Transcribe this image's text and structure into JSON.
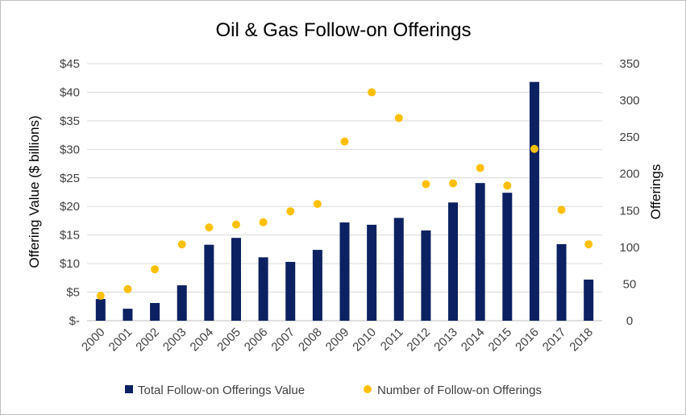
{
  "chart_data": {
    "type": "bar",
    "title": "Oil & Gas Follow-on Offerings",
    "categories": [
      "2000",
      "2001",
      "2002",
      "2003",
      "2004",
      "2005",
      "2006",
      "2007",
      "2008",
      "2009",
      "2010",
      "2011",
      "2012",
      "2013",
      "2014",
      "2015",
      "2016",
      "2017",
      "2018"
    ],
    "series": [
      {
        "name": "Total Follow-on Offerings Value",
        "type": "bar",
        "axis": "left",
        "color": "#0b2161",
        "values": [
          3.8,
          2.1,
          3.1,
          6.2,
          13.3,
          14.5,
          11.1,
          10.3,
          12.4,
          17.2,
          16.8,
          18.0,
          15.8,
          20.7,
          24.1,
          22.4,
          41.8,
          13.4,
          7.2
        ]
      },
      {
        "name": "Number of Follow-on Offerings",
        "type": "scatter",
        "axis": "right",
        "color": "#ffc000",
        "values": [
          34,
          43,
          70,
          104,
          127,
          131,
          134,
          149,
          159,
          244,
          311,
          276,
          186,
          187,
          208,
          184,
          234,
          151,
          104
        ]
      }
    ],
    "ylabel": "Offering Value ($ billions)",
    "y2label": "Offerings",
    "ylim": [
      0,
      45
    ],
    "y2lim": [
      0,
      350
    ],
    "yticks": [
      "$-",
      "$5",
      "$10",
      "$15",
      "$20",
      "$25",
      "$30",
      "$35",
      "$40",
      "$45"
    ],
    "y2ticks": [
      "0",
      "50",
      "100",
      "150",
      "200",
      "250",
      "300",
      "350"
    ],
    "grid": true,
    "legend_position": "bottom"
  }
}
